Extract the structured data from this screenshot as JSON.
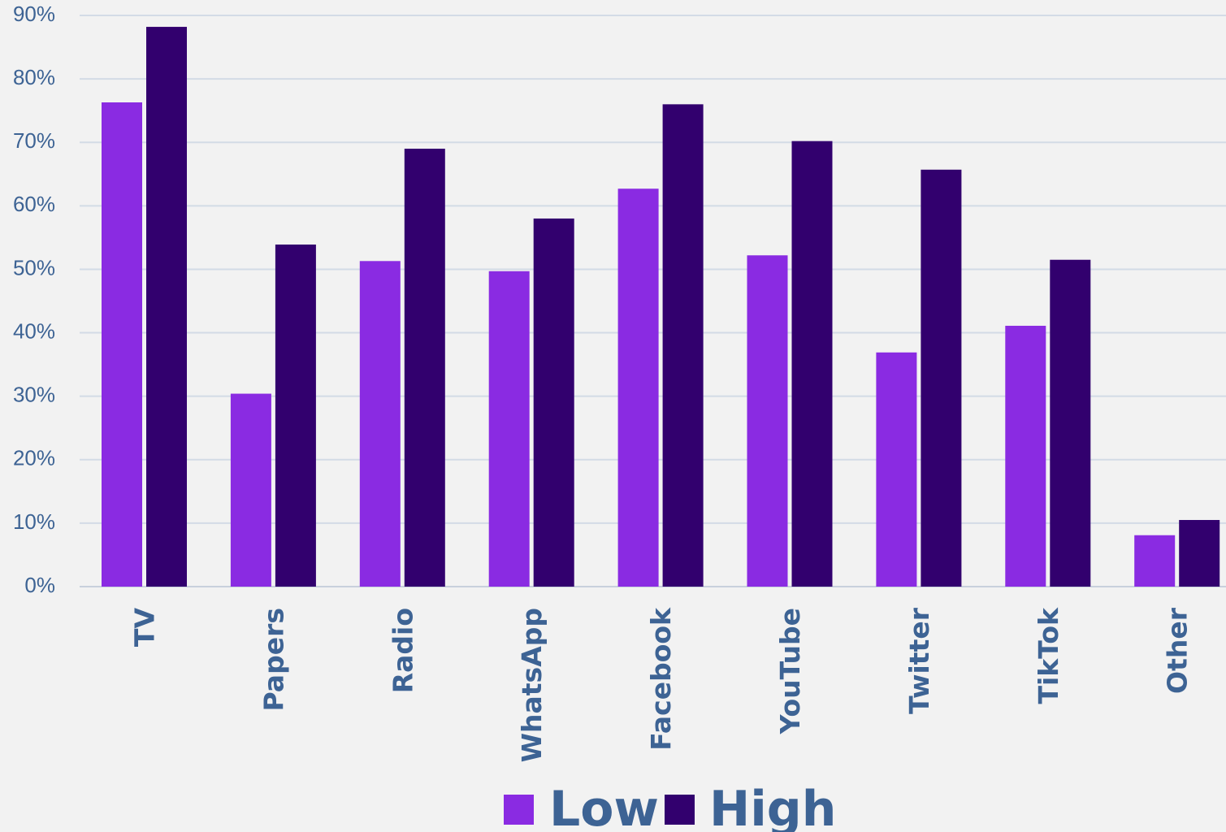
{
  "chart_data": {
    "type": "bar",
    "title": "",
    "xlabel": "",
    "ylabel": "",
    "categories": [
      "TV",
      "Papers",
      "Radio",
      "WhatsApp",
      "Facebook",
      "YouTube",
      "Twitter",
      "TikTok",
      "Other"
    ],
    "series": [
      {
        "name": "Low",
        "color": "#8a2be2",
        "values": [
          76.3,
          30.4,
          51.3,
          49.7,
          62.7,
          52.2,
          36.9,
          41.1,
          8.1
        ]
      },
      {
        "name": "High",
        "color": "#32006e",
        "values": [
          88.2,
          53.9,
          69.0,
          58.0,
          76.0,
          70.2,
          65.7,
          51.5,
          10.5
        ]
      }
    ],
    "ylim": [
      0,
      90
    ],
    "yticks": [
      0,
      10,
      20,
      30,
      40,
      50,
      60,
      70,
      80,
      90
    ],
    "ytick_labels": [
      "0%",
      "10%",
      "20%",
      "30%",
      "40%",
      "50%",
      "60%",
      "70%",
      "80%",
      "90%"
    ],
    "grid": true,
    "legend_position": "bottom-center",
    "text_color": "#3d6394",
    "background": "#f2f2f2"
  }
}
